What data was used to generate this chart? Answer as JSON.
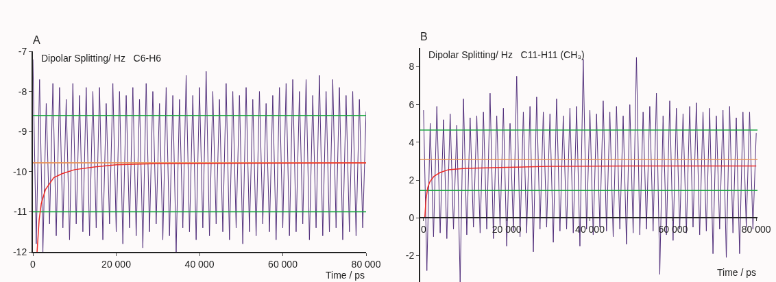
{
  "chart_data": [
    {
      "type": "line",
      "title": "A",
      "ylabel": "Dipolar Splitting/ Hz   C6-H6",
      "xlabel": "Time / ps",
      "x": [
        0,
        800,
        1600,
        2400,
        3200,
        4000,
        4800,
        5600,
        6400,
        7200,
        8000,
        8800,
        9600,
        10400,
        11200,
        12000,
        12800,
        13600,
        14400,
        15200,
        16000,
        16800,
        17600,
        18400,
        19200,
        20000,
        20800,
        21600,
        22400,
        23200,
        24000,
        24800,
        25600,
        26400,
        27200,
        28000,
        28800,
        29600,
        30400,
        31200,
        32000,
        32800,
        33600,
        34400,
        35200,
        36000,
        36800,
        37600,
        38400,
        39200,
        40000,
        40800,
        41600,
        42400,
        43200,
        44000,
        44800,
        45600,
        46400,
        47200,
        48000,
        48800,
        49600,
        50400,
        51200,
        52000,
        52800,
        53600,
        54400,
        55200,
        56000,
        56800,
        57600,
        58400,
        59200,
        60000,
        60800,
        61600,
        62400,
        63200,
        64000,
        64800,
        65600,
        66400,
        67200,
        68000,
        68800,
        69600,
        70400,
        71200,
        72000,
        72800,
        73600,
        74400,
        75200,
        76000,
        76800,
        77600,
        78400,
        79200,
        80000
      ],
      "series": [
        {
          "color": "#52307c",
          "values": [
            -7.2,
            -11.8,
            -7.7,
            -12.0,
            -8.3,
            -11.3,
            -7.8,
            -11.6,
            -7.9,
            -11.4,
            -8.2,
            -11.7,
            -7.8,
            -11.3,
            -8.1,
            -11.5,
            -7.9,
            -11.6,
            -8.0,
            -11.4,
            -7.9,
            -11.7,
            -8.3,
            -11.3,
            -7.8,
            -11.5,
            -8.0,
            -11.8,
            -8.1,
            -11.4,
            -7.9,
            -11.6,
            -8.2,
            -11.9,
            -7.8,
            -11.5,
            -8.0,
            -11.3,
            -8.3,
            -11.7,
            -7.9,
            -11.6,
            -8.1,
            -12.0,
            -8.2,
            -11.4,
            -7.6,
            -11.5,
            -8.1,
            -11.7,
            -7.9,
            -11.4,
            -7.5,
            -11.6,
            -8.0,
            -11.3,
            -8.2,
            -11.5,
            -7.8,
            -11.7,
            -8.0,
            -11.4,
            -8.1,
            -11.8,
            -7.9,
            -11.5,
            -8.2,
            -11.6,
            -8.0,
            -11.3,
            -8.3,
            -11.5,
            -8.1,
            -11.7,
            -7.9,
            -11.4,
            -7.8,
            -11.6,
            -7.7,
            -11.5,
            -8.0,
            -11.3,
            -7.7,
            -11.7,
            -8.1,
            -11.4,
            -7.6,
            -11.6,
            -8.0,
            -11.5,
            -7.7,
            -11.4,
            -7.9,
            -11.7,
            -8.1,
            -11.5,
            -8.0,
            -11.6,
            -8.2,
            -11.4,
            -8.5
          ]
        },
        {
          "color": "#ee2a24",
          "x": [
            1000,
            1500,
            2000,
            3000,
            4000,
            5000,
            7000,
            10000,
            15000,
            20000,
            30000,
            50000,
            80000
          ],
          "values": [
            -12,
            -11.2,
            -10.8,
            -10.45,
            -10.3,
            -10.15,
            -10.05,
            -9.95,
            -9.88,
            -9.83,
            -9.8,
            -9.79,
            -9.78
          ]
        }
      ],
      "ref_lines": [
        {
          "axis": "y",
          "value": -8.6,
          "color": "#1fa844"
        },
        {
          "axis": "y",
          "value": -11,
          "color": "#1fa844"
        },
        {
          "axis": "y",
          "value": -9.78,
          "color": "#e8945a"
        }
      ],
      "xlim": [
        0,
        80000
      ],
      "xticks": [
        0,
        {
          "value": 20000,
          "label": "20 000"
        },
        {
          "value": 40000,
          "label": "40 000"
        },
        {
          "value": 60000,
          "label": "60 000"
        },
        {
          "value": 80000,
          "label": "80 000"
        }
      ],
      "ylim": [
        -12,
        -7
      ],
      "yticks": [
        -12,
        -11,
        -10,
        -9,
        -8,
        -7
      ],
      "grid": false,
      "marker": "none",
      "line_style": "solid"
    },
    {
      "type": "line",
      "title": "B",
      "ylabel": "Dipolar Splitting/ Hz   C11-H11 (CH₃)",
      "xlabel": "Time / ps",
      "x": [
        0,
        800,
        1600,
        2400,
        3200,
        4000,
        4800,
        5600,
        6400,
        7200,
        8000,
        8800,
        9600,
        10400,
        11200,
        12000,
        12800,
        13600,
        14400,
        15200,
        16000,
        16800,
        17600,
        18400,
        19200,
        20000,
        20800,
        21600,
        22400,
        23200,
        24000,
        24800,
        25600,
        26400,
        27200,
        28000,
        28800,
        29600,
        30400,
        31200,
        32000,
        32800,
        33600,
        34400,
        35200,
        36000,
        36800,
        37600,
        38400,
        39200,
        40000,
        40800,
        41600,
        42400,
        43200,
        44000,
        44800,
        45600,
        46400,
        47200,
        48000,
        48800,
        49600,
        50400,
        51200,
        52000,
        52800,
        53600,
        54400,
        55200,
        56000,
        56800,
        57600,
        58400,
        59200,
        60000,
        60800,
        61600,
        62400,
        63200,
        64000,
        64800,
        65600,
        66400,
        67200,
        68000,
        68800,
        69600,
        70400,
        71200,
        72000,
        72800,
        73600,
        74400,
        75200,
        76000,
        76800,
        77600,
        78400,
        79200,
        80000
      ],
      "series": [
        {
          "color": "#52307c",
          "values": [
            5.7,
            -2.8,
            5.0,
            -1.0,
            5.9,
            -0.8,
            5.2,
            -1.1,
            5.5,
            -0.6,
            4.9,
            -3.4,
            6.3,
            -0.9,
            5.3,
            -0.5,
            5.4,
            -0.8,
            5.6,
            -0.6,
            6.6,
            -1.1,
            5.4,
            -0.5,
            5.8,
            -1.5,
            5.0,
            -0.7,
            7.5,
            -1.0,
            5.6,
            -0.8,
            5.9,
            -1.8,
            6.4,
            -0.6,
            5.6,
            -0.5,
            5.5,
            -1.3,
            6.3,
            -0.7,
            5.4,
            -0.6,
            5.8,
            -0.8,
            5.9,
            -1.5,
            8.4,
            -0.6,
            5.7,
            -0.9,
            5.5,
            -0.5,
            6.2,
            -0.7,
            5.6,
            -1.0,
            5.9,
            -0.6,
            5.4,
            -1.4,
            6.0,
            -0.8,
            8.5,
            -0.9,
            5.6,
            -0.6,
            5.9,
            -0.7,
            6.6,
            -3.0,
            5.4,
            -0.9,
            6.2,
            -1.2,
            5.8,
            -0.6,
            5.5,
            -0.8,
            5.9,
            -0.5,
            6.1,
            -0.9,
            5.6,
            -0.7,
            5.8,
            -1.9,
            5.4,
            -0.6,
            5.7,
            -2.1,
            5.9,
            -0.8,
            5.3,
            -1.9,
            5.6,
            -0.5,
            5.6,
            -0.6,
            4.5
          ]
        },
        {
          "color": "#ee2a24",
          "x": [
            300,
            600,
            1000,
            1500,
            2500,
            4000,
            6000,
            10000,
            20000,
            30000,
            50000,
            80000
          ],
          "values": [
            0,
            1.0,
            1.6,
            1.9,
            2.2,
            2.4,
            2.55,
            2.62,
            2.67,
            2.73,
            2.75,
            2.75
          ]
        }
      ],
      "ref_lines": [
        {
          "axis": "y",
          "value": 4.65,
          "color": "#1fa844"
        },
        {
          "axis": "y",
          "value": 1.45,
          "color": "#1fa844"
        },
        {
          "axis": "y",
          "value": 3.1,
          "color": "#e8945a"
        }
      ],
      "xlim": [
        -800,
        80300
      ],
      "xticks": [
        0,
        {
          "value": 20000,
          "label": "20 000"
        },
        {
          "value": 40000,
          "label": "40 000"
        },
        {
          "value": 60000,
          "label": "60 000"
        },
        {
          "value": 80000,
          "label": "80 000"
        }
      ],
      "ylim": [
        -3.4,
        9
      ],
      "yticks": [
        -2,
        0,
        2,
        4,
        6,
        8
      ],
      "grid": false,
      "marker": "none",
      "line_style": "solid"
    }
  ]
}
